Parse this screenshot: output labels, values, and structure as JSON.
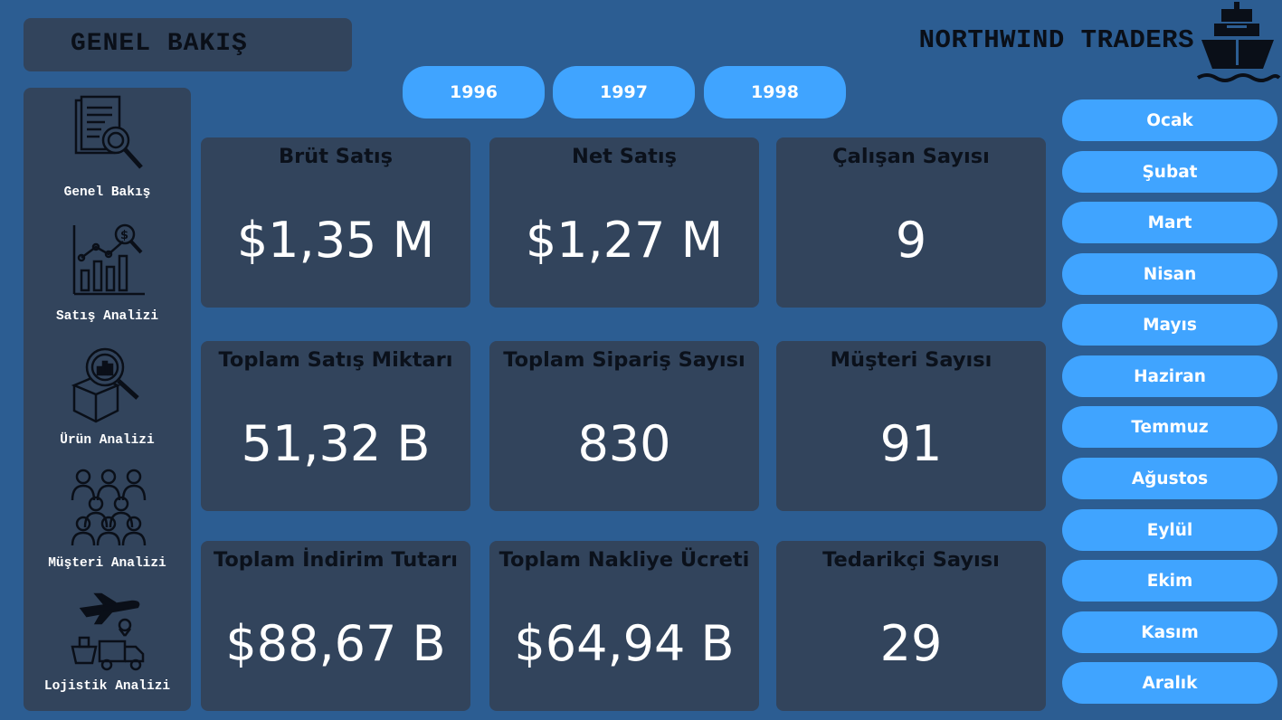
{
  "header": {
    "page_title": "GENEL BAKIŞ",
    "brand": "NORTHWIND TRADERS",
    "brand_icon": "ship-icon"
  },
  "sidebar": {
    "items": [
      {
        "label": "Genel Bakış",
        "icon": "document-search-icon"
      },
      {
        "label": "Satış Analizi",
        "icon": "sales-chart-icon"
      },
      {
        "label": "Ürün Analizi",
        "icon": "product-box-search-icon"
      },
      {
        "label": "Müşteri Analizi",
        "icon": "customers-group-icon"
      },
      {
        "label": "Lojistik Analizi",
        "icon": "logistics-icon"
      }
    ]
  },
  "years": [
    "1996",
    "1997",
    "1998"
  ],
  "months": [
    "Ocak",
    "Şubat",
    "Mart",
    "Nisan",
    "Mayıs",
    "Haziran",
    "Temmuz",
    "Ağustos",
    "Eylül",
    "Ekim",
    "Kasım",
    "Aralık"
  ],
  "cards": [
    {
      "title": "Brüt Satış",
      "value": "$1,35 M"
    },
    {
      "title": "Net Satış",
      "value": "$1,27 M"
    },
    {
      "title": "Çalışan Sayısı",
      "value": "9"
    },
    {
      "title": "Toplam Satış Miktarı",
      "value": "51,32 B"
    },
    {
      "title": "Toplam Sipariş Sayısı",
      "value": "830"
    },
    {
      "title": "Müşteri Sayısı",
      "value": "91"
    },
    {
      "title": "Toplam İndirim Tutarı",
      "value": "$88,67 B"
    },
    {
      "title": "Toplam Nakliye Ücreti",
      "value": "$64,94 B"
    },
    {
      "title": "Tedarikçi Sayısı",
      "value": "29"
    }
  ],
  "colors": {
    "background": "#2c5d92",
    "panel": "#32445c",
    "accent": "#40a4ff",
    "text_dark": "#0a0f18",
    "text_light": "#ffffff"
  }
}
